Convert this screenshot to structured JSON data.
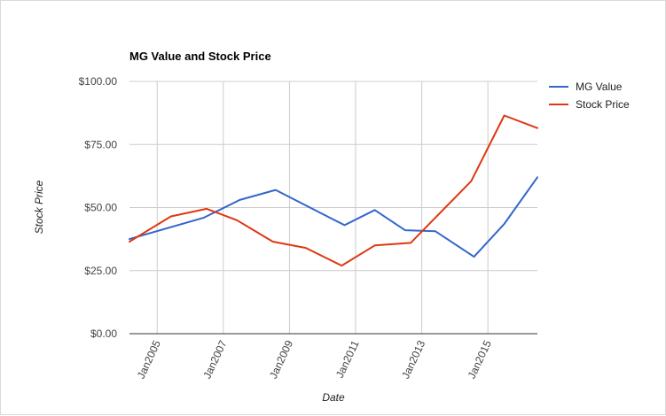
{
  "chart_data": {
    "type": "line",
    "title": "MG Value and Stock Price",
    "xlabel": "Date",
    "ylabel": "Stock Price",
    "ylim": [
      0,
      100
    ],
    "yticks": [
      0,
      25,
      50,
      75,
      100
    ],
    "ytick_labels": [
      "$0.00",
      "$25.00",
      "$50.00",
      "$75.00",
      "$100.00"
    ],
    "xlim": [
      "2004-03-01",
      "2016-07-01"
    ],
    "xticks": [
      "2005-01-01",
      "2007-01-01",
      "2009-01-01",
      "2011-01-01",
      "2013-01-01",
      "2015-01-01"
    ],
    "xtick_labels": [
      "Jan2005",
      "Jan2007",
      "Jan2009",
      "Jan2011",
      "Jan2013",
      "Jan2015"
    ],
    "grid": true,
    "legend_position": "right",
    "series": [
      {
        "name": "MG Value",
        "color": "#3366cc",
        "points": [
          {
            "x": "2004-03-01",
            "y": 37.5
          },
          {
            "x": "2006-06-01",
            "y": 46.0
          },
          {
            "x": "2007-07-01",
            "y": 53.0
          },
          {
            "x": "2008-08-01",
            "y": 57.0
          },
          {
            "x": "2010-09-01",
            "y": 43.0
          },
          {
            "x": "2011-08-01",
            "y": 49.0
          },
          {
            "x": "2012-07-01",
            "y": 41.0
          },
          {
            "x": "2013-06-01",
            "y": 40.6
          },
          {
            "x": "2014-08-01",
            "y": 30.5
          },
          {
            "x": "2015-07-01",
            "y": 43.5
          },
          {
            "x": "2016-07-01",
            "y": 62.0
          }
        ]
      },
      {
        "name": "Stock Price",
        "color": "#dc3912",
        "points": [
          {
            "x": "2004-03-01",
            "y": 36.5
          },
          {
            "x": "2005-06-01",
            "y": 46.5
          },
          {
            "x": "2006-07-01",
            "y": 49.5
          },
          {
            "x": "2007-06-01",
            "y": 45.0
          },
          {
            "x": "2008-07-01",
            "y": 36.5
          },
          {
            "x": "2009-07-01",
            "y": 34.0
          },
          {
            "x": "2010-08-01",
            "y": 27.0
          },
          {
            "x": "2011-08-01",
            "y": 35.0
          },
          {
            "x": "2012-09-01",
            "y": 36.0
          },
          {
            "x": "2014-07-01",
            "y": 60.5
          },
          {
            "x": "2015-07-01",
            "y": 86.5
          },
          {
            "x": "2016-07-01",
            "y": 81.5
          }
        ]
      }
    ]
  }
}
